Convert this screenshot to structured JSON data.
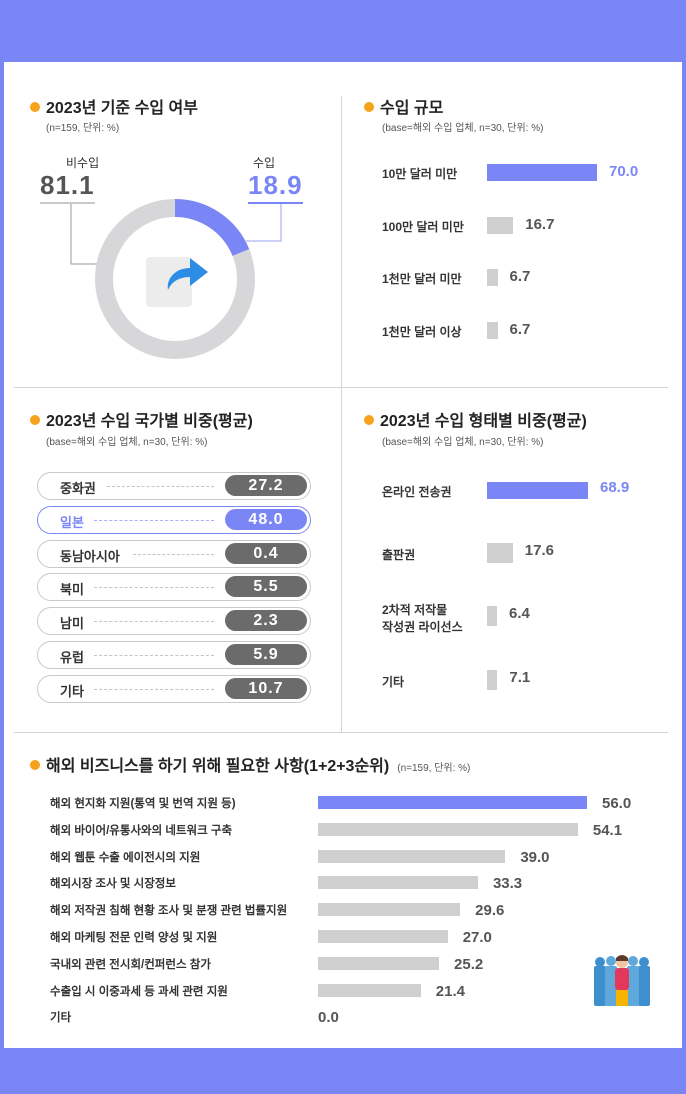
{
  "colors": {
    "accent": "#7b86f6",
    "gray_bar": "#cfcfcf",
    "orange": "#f7a21b",
    "pill_gray": "#6b6b6b"
  },
  "import_status": {
    "title": "2023년 기준 수입 여부",
    "subtitle": "(n=159, 단위: %)",
    "non_import_label": "비수입",
    "non_import_value": "81.1",
    "import_label": "수입",
    "import_value": "18.9",
    "icon": "share-arrow-icon"
  },
  "import_scale": {
    "title": "수입 규모",
    "subtitle": "(base=해외 수입 업체, n=30, 단위: %)",
    "items": [
      {
        "label": "10만 달러 미만",
        "value": "70.0"
      },
      {
        "label": "100만 달러 미만",
        "value": "16.7"
      },
      {
        "label": "1천만 달러 미만",
        "value": "6.7"
      },
      {
        "label": "1천만 달러 이상",
        "value": "6.7"
      }
    ]
  },
  "import_country": {
    "title": "2023년 수입 국가별 비중(평균)",
    "subtitle": "(base=해외 수입 업체, n=30, 단위: %)",
    "items": [
      {
        "label": "중화권",
        "value": "27.2"
      },
      {
        "label": "일본",
        "value": "48.0"
      },
      {
        "label": "동남아시아",
        "value": "0.4"
      },
      {
        "label": "북미",
        "value": "5.5"
      },
      {
        "label": "남미",
        "value": "2.3"
      },
      {
        "label": "유럽",
        "value": "5.9"
      },
      {
        "label": "기타",
        "value": "10.7"
      }
    ]
  },
  "import_type": {
    "title": "2023년 수입 형태별 비중(평균)",
    "subtitle": "(base=해외 수입 업체, n=30, 단위: %)",
    "items": [
      {
        "label": "온라인 전송권",
        "value": "68.9"
      },
      {
        "label": "출판권",
        "value": "17.6"
      },
      {
        "label": "2차적 저작물",
        "label2": "작성권 라이선스",
        "value": "6.4"
      },
      {
        "label": "기타",
        "value": "7.1"
      }
    ]
  },
  "business_needs": {
    "title": "해외 비즈니스를 하기 위해 필요한 사항(1+2+3순위)",
    "subtitle": "(n=159, 단위: %)",
    "icon": "people-group-icon",
    "items": [
      {
        "label": "해외 현지화 지원(통역 및 번역 지원 등)",
        "value": "56.0"
      },
      {
        "label": "해외 바이어/유통사와의 네트워크 구축",
        "value": "54.1"
      },
      {
        "label": "해외 웹툰 수출 에이전시의 지원",
        "value": "39.0"
      },
      {
        "label": "해외시장 조사 및 시장정보",
        "value": "33.3"
      },
      {
        "label": "해외 저작권 침해 현황 조사 및 분쟁 관련 법률지원",
        "value": "29.6"
      },
      {
        "label": "해외 마케팅 전문 인력 양성 및 지원",
        "value": "27.0"
      },
      {
        "label": "국내외 관련 전시회/컨퍼런스 참가",
        "value": "25.2"
      },
      {
        "label": "수출입 시 이중과세 등 과세 관련 지원",
        "value": "21.4"
      },
      {
        "label": "기타",
        "value": "0.0"
      }
    ]
  },
  "chart_data": [
    {
      "type": "pie",
      "title": "2023년 기준 수입 여부",
      "categories": [
        "비수입",
        "수입"
      ],
      "values": [
        81.1,
        18.9
      ]
    },
    {
      "type": "bar",
      "title": "수입 규모",
      "categories": [
        "10만 달러 미만",
        "100만 달러 미만",
        "1천만 달러 미만",
        "1천만 달러 이상"
      ],
      "values": [
        70.0,
        16.7,
        6.7,
        6.7
      ]
    },
    {
      "type": "table",
      "title": "2023년 수입 국가별 비중(평균)",
      "categories": [
        "중화권",
        "일본",
        "동남아시아",
        "북미",
        "남미",
        "유럽",
        "기타"
      ],
      "values": [
        27.2,
        48.0,
        0.4,
        5.5,
        2.3,
        5.9,
        10.7
      ]
    },
    {
      "type": "bar",
      "title": "2023년 수입 형태별 비중(평균)",
      "categories": [
        "온라인 전송권",
        "출판권",
        "2차적 저작물 작성권 라이선스",
        "기타"
      ],
      "values": [
        68.9,
        17.6,
        6.4,
        7.1
      ]
    },
    {
      "type": "bar",
      "title": "해외 비즈니스를 하기 위해 필요한 사항(1+2+3순위)",
      "categories": [
        "해외 현지화 지원(통역 및 번역 지원 등)",
        "해외 바이어/유통사와의 네트워크 구축",
        "해외 웹툰 수출 에이전시의 지원",
        "해외시장 조사 및 시장정보",
        "해외 저작권 침해 현황 조사 및 분쟁 관련 법률지원",
        "해외 마케팅 전문 인력 양성 및 지원",
        "국내외 관련 전시회/컨퍼런스 참가",
        "수출입 시 이중과세 등 과세 관련 지원",
        "기타"
      ],
      "values": [
        56.0,
        54.1,
        39.0,
        33.3,
        29.6,
        27.0,
        25.2,
        21.4,
        0.0
      ]
    }
  ]
}
